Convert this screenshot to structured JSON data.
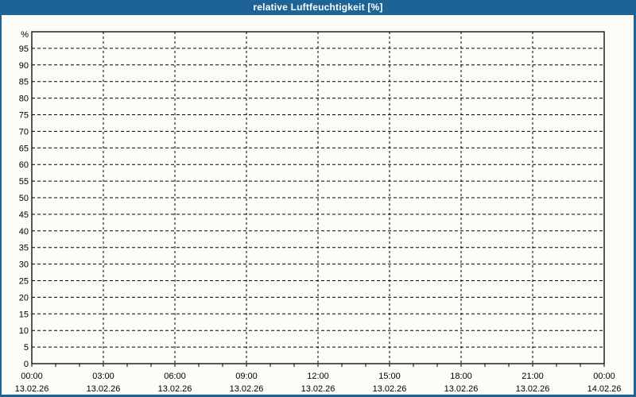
{
  "window": {
    "title": "relative Luftfeuchtigkeit [%]",
    "frame_color": "#1e6396",
    "title_text_color": "#ffffff",
    "background_color": "#fcfdf8"
  },
  "chart_data": {
    "type": "line",
    "title": "relative Luftfeuchtigkeit [%]",
    "xlabel": "",
    "ylabel": "%",
    "grid": "dashed",
    "legend": "none",
    "y_axis": {
      "unit_label": "%",
      "min": 0,
      "max": 100,
      "tick_step": 5,
      "labeled_ticks": [
        0,
        5,
        10,
        15,
        20,
        25,
        30,
        35,
        40,
        45,
        50,
        55,
        60,
        65,
        70,
        75,
        80,
        85,
        90,
        95
      ]
    },
    "x_axis": {
      "minor_tick_interval_hours": 1,
      "total_hours": 24,
      "major_ticks": [
        {
          "hour": 0,
          "time": "00:00",
          "date": "13.02.26"
        },
        {
          "hour": 3,
          "time": "03:00",
          "date": "13.02.26"
        },
        {
          "hour": 6,
          "time": "06:00",
          "date": "13.02.26"
        },
        {
          "hour": 9,
          "time": "09:00",
          "date": "13.02.26"
        },
        {
          "hour": 12,
          "time": "12:00",
          "date": "13.02.26"
        },
        {
          "hour": 15,
          "time": "15:00",
          "date": "13.02.26"
        },
        {
          "hour": 18,
          "time": "18:00",
          "date": "13.02.26"
        },
        {
          "hour": 21,
          "time": "21:00",
          "date": "13.02.26"
        },
        {
          "hour": 24,
          "time": "00:00",
          "date": "14.02.26"
        }
      ]
    },
    "series": []
  }
}
